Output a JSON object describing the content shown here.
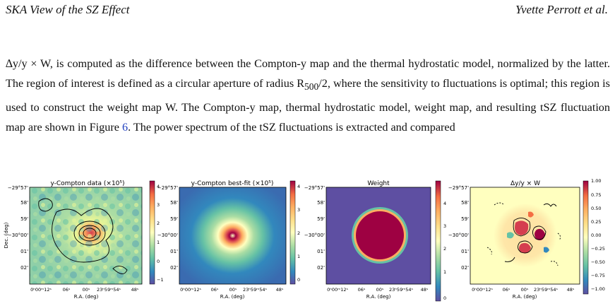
{
  "header": {
    "left": "SKA View of the SZ Effect",
    "right": "Yvette Perrott et al."
  },
  "paragraph": {
    "pre": "∆y/y × W, is computed as the difference between the Compton-y map and the thermal hydrostatic model, normalized by the latter. The region of interest is defined as a circular aperture of radius R",
    "sub": "500",
    "mid": "/2, where the sensitivity to fluctuations is optimal; this region is used to construct the weight map W. The Compton-y map, thermal hydrostatic model, weight map, and resulting tSZ fluctuation map are shown in Figure ",
    "figref": "6",
    "post": ". The power spectrum of the tSZ fluctuations is extracted and compared"
  },
  "figure": {
    "panels": [
      {
        "title": "y-Compton data (×10⁵)",
        "ylabel": "Dec. (deg)",
        "yticks": [
          "−29°57'",
          "58'",
          "59'",
          "−30°00'",
          "01'",
          "02'"
        ],
        "xticks": [
          "0ʰ00ᵐ12ˢ",
          "06ˢ",
          "00ˢ",
          "23ʰ59ᵐ54ˢ",
          "48ˢ"
        ],
        "xlabel": "R.A. (deg)",
        "cbar_ticks": [
          "4",
          "3",
          "2",
          "1",
          "0",
          "−1"
        ]
      },
      {
        "title": "y-Compton best-fit (×10⁵)",
        "ylabel": "",
        "yticks": [
          "−29°57'",
          "58'",
          "59'",
          "−30°00'",
          "01'",
          "02'"
        ],
        "xticks": [
          "0ʰ00ᵐ12ˢ",
          "06ˢ",
          "00ˢ",
          "23ʰ59ᵐ54ˢ",
          "48ˢ"
        ],
        "xlabel": "R.A. (deg)",
        "cbar_ticks": [
          "4",
          "3",
          "2",
          "1",
          "0"
        ]
      },
      {
        "title": "Weight",
        "ylabel": "",
        "yticks": [
          "−29°57'",
          "58'",
          "59'",
          "−30°00'",
          "01'",
          "02'"
        ],
        "xticks": [
          "0ʰ00ᵐ12ˢ",
          "06ˢ",
          "00ˢ",
          "23ʰ59ᵐ54ˢ",
          "48ˢ"
        ],
        "xlabel": "R.A. (deg)",
        "cbar_ticks": [
          "4",
          "3",
          "2",
          "1",
          "0"
        ]
      },
      {
        "title": "Δy/y × W",
        "ylabel": "",
        "yticks": [
          "−29°57'",
          "58'",
          "59'",
          "−30°00'",
          "01'",
          "02'"
        ],
        "xticks": [
          "0ʰ00ᵐ12ˢ",
          "06ˢ",
          "00ˢ",
          "23ʰ59ᵐ54ˢ",
          "48ˢ"
        ],
        "xlabel": "R.A. (deg)",
        "cbar_ticks": [
          "1.00",
          "0.75",
          "0.50",
          "0.25",
          "0.00",
          "−0.25",
          "−0.50",
          "−0.75",
          "−1.00"
        ]
      }
    ],
    "colors": {
      "link": "#1f3fbf"
    }
  }
}
